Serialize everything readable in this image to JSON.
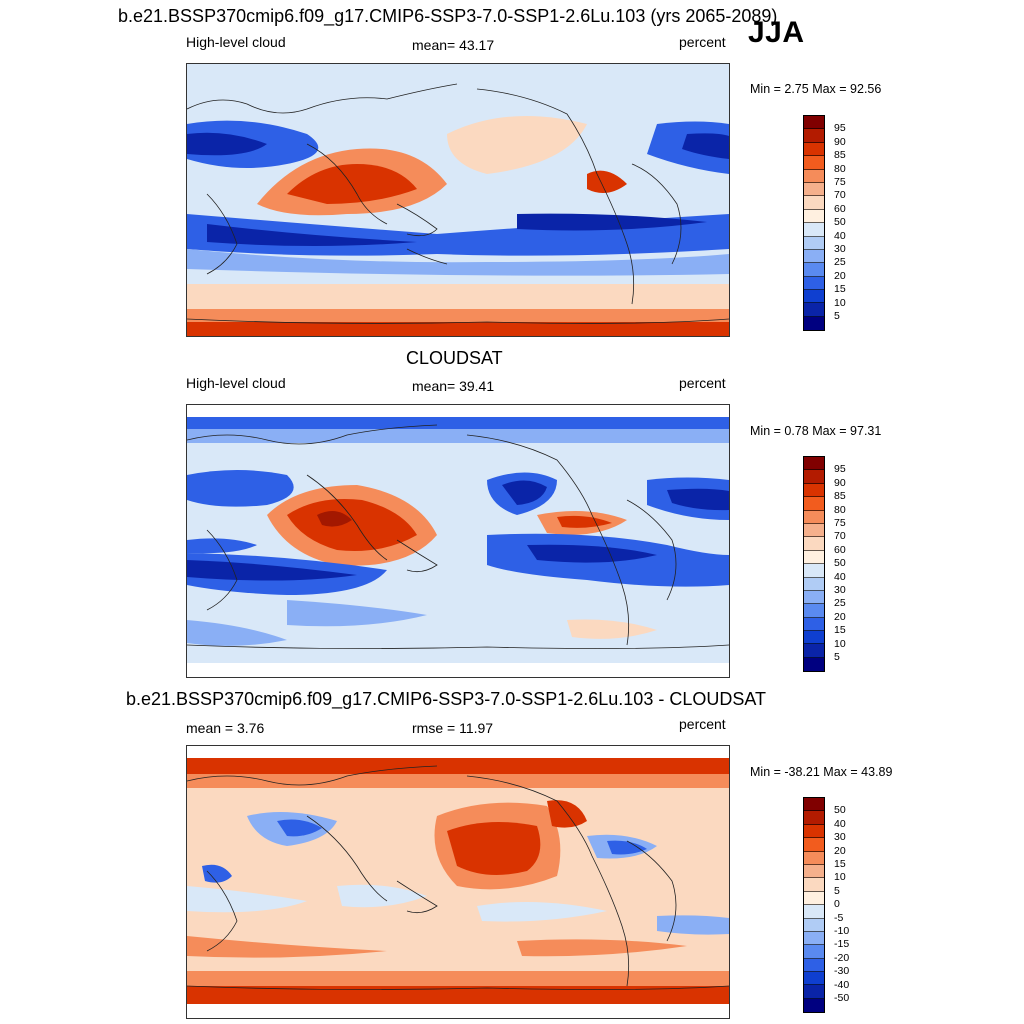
{
  "season": "JJA",
  "panels": [
    {
      "title": "b.e21.BSSP370cmip6.f09_g17.CMIP6-SSP3-7.0-SSP1-2.6Lu.103 (yrs 2065-2089)",
      "left_label": "High-level cloud",
      "center_label": "mean=  43.17",
      "right_label": "percent",
      "minmax": "Min =   2.75 Max =  92.56"
    },
    {
      "title": "CLOUDSAT",
      "left_label": "High-level cloud",
      "center_label": "mean=  39.41",
      "right_label": "percent",
      "minmax": "Min =   0.78 Max =  97.31"
    },
    {
      "title": "b.e21.BSSP370cmip6.f09_g17.CMIP6-SSP3-7.0-SSP1-2.6Lu.103 - CLOUDSAT",
      "left_label": "mean =   3.76",
      "center_label": "rmse =  11.97",
      "right_label": "percent",
      "minmax": "Min = -38.21 Max =  43.89"
    }
  ],
  "colorbar_abs": {
    "labels": [
      "95",
      "90",
      "85",
      "80",
      "75",
      "70",
      "60",
      "50",
      "40",
      "30",
      "25",
      "20",
      "15",
      "10",
      "5"
    ],
    "colors": [
      "#800000",
      "#b31b00",
      "#d93300",
      "#f25c1e",
      "#f58c5a",
      "#f5b08c",
      "#fbd9c0",
      "#fff0e0",
      "#d9e8f8",
      "#b0ccf5",
      "#8aaff5",
      "#5a8af0",
      "#2e60e6",
      "#0f3fd0",
      "#0a24a8",
      "#000080"
    ]
  },
  "colorbar_diff": {
    "labels": [
      "50",
      "40",
      "30",
      "20",
      "15",
      "10",
      "5",
      "0",
      "-5",
      "-10",
      "-15",
      "-20",
      "-30",
      "-40",
      "-50"
    ],
    "colors": [
      "#800000",
      "#b31b00",
      "#d93300",
      "#f25c1e",
      "#f58c5a",
      "#f5b08c",
      "#fbd9c0",
      "#fff0e0",
      "#d9e8f8",
      "#b0ccf5",
      "#8aaff5",
      "#5a8af0",
      "#2e60e6",
      "#0f3fd0",
      "#0a24a8",
      "#000080"
    ]
  },
  "map_palette": {
    "deep_red": "#a31800",
    "red": "#d93300",
    "orange": "#f58c5a",
    "peach": "#fbd9c0",
    "cream": "#fff0e0",
    "light_blue": "#d9e8f8",
    "mid_blue": "#8aaff5",
    "blue": "#2e60e6",
    "dark_blue": "#0a24a8",
    "coast": "#222222"
  }
}
